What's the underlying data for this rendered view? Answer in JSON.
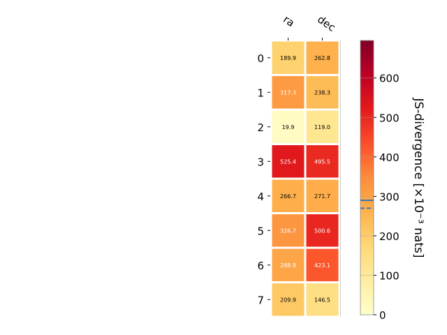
{
  "chart_data": {
    "type": "heatmap",
    "columns": [
      "ra",
      "dec"
    ],
    "rows": [
      "0",
      "1",
      "2",
      "3",
      "4",
      "5",
      "6",
      "7"
    ],
    "values": [
      [
        189.9,
        262.8
      ],
      [
        317.3,
        238.3
      ],
      [
        19.9,
        119.0
      ],
      [
        525.4,
        495.5
      ],
      [
        266.7,
        271.7
      ],
      [
        326.7,
        500.6
      ],
      [
        288.9,
        423.1
      ],
      [
        209.9,
        146.5
      ]
    ],
    "colorbar": {
      "label": "JS-divergence [×10⁻³ nats]",
      "range": [
        0,
        695
      ],
      "ticks": [
        0,
        100,
        200,
        300,
        400,
        500,
        600
      ],
      "reference_lines": [
        {
          "value": 290,
          "style": "solid",
          "color": "#3b75af"
        },
        {
          "value": 270,
          "style": "dashed",
          "color": "#3b75af"
        }
      ]
    },
    "colormap": "YlOrRd"
  }
}
